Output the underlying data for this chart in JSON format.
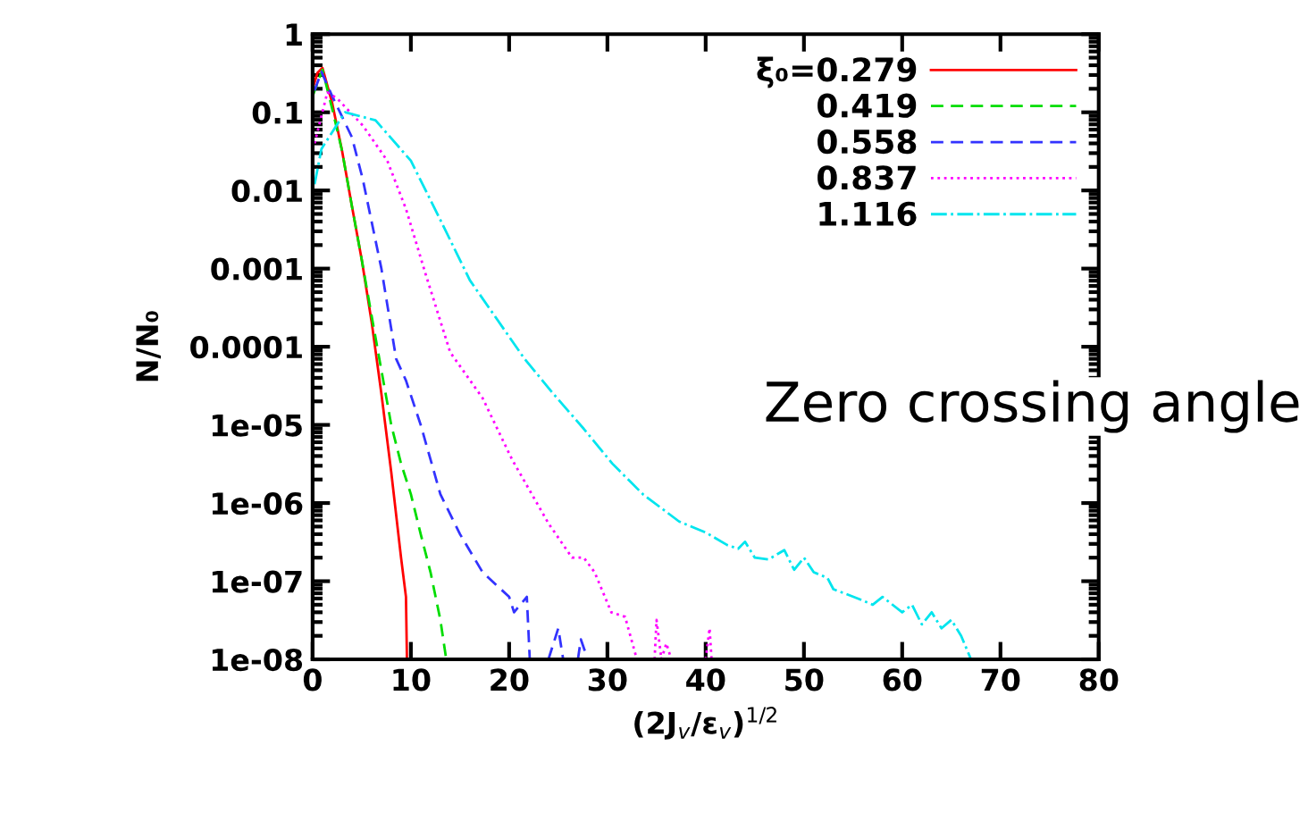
{
  "chart_data": {
    "type": "line",
    "xlabel": "(2J$_{v}$/ε$_{v}$)$^{1/2}$",
    "ylabel": "N/N₀",
    "xlim": [
      0,
      80
    ],
    "xticks": [
      0,
      10,
      20,
      30,
      40,
      50,
      60,
      70,
      80
    ],
    "ylim": [
      1e-08,
      1
    ],
    "yticks": [
      {
        "value": 1e-08,
        "label": "1e-08"
      },
      {
        "value": 1e-07,
        "label": "1e-07"
      },
      {
        "value": 1e-06,
        "label": "1e-06"
      },
      {
        "value": 1e-05,
        "label": "1e-05"
      },
      0.0001,
      0.001,
      0.01,
      0.1,
      1
    ],
    "log": "y",
    "grid": false,
    "legend": "top right",
    "annotations": [
      "Zero crossing angle"
    ],
    "series": [
      {
        "name": "ξ₀=0.279",
        "color": "#ff0000",
        "line_style": "solid",
        "x": [
          0,
          0.5,
          1,
          2,
          3,
          4,
          5,
          6,
          7,
          8,
          9,
          9.5,
          9.6
        ],
        "values": [
          0.2,
          0.32,
          0.37,
          0.13,
          0.032,
          0.0063,
          0.0013,
          0.00021,
          2.5e-05,
          2.5e-06,
          2e-07,
          6.3e-08,
          1e-08
        ]
      },
      {
        "name": "0.419",
        "color": "#00dd00",
        "line_style": "dashed",
        "x": [
          0,
          1,
          2,
          3,
          4,
          5,
          6,
          7,
          8,
          9,
          10,
          11,
          12,
          13,
          13.6
        ],
        "values": [
          0.16,
          0.35,
          0.11,
          0.032,
          0.0063,
          0.0013,
          0.00025,
          5e-05,
          1e-05,
          3.2e-06,
          1.3e-06,
          4e-07,
          1.3e-07,
          3.2e-08,
          1e-08
        ]
      },
      {
        "name": "0.558",
        "color": "#3333ff",
        "line_style": "dashed",
        "x": [
          0.2,
          0.9,
          2,
          4,
          5.1,
          7,
          8.5,
          9.5,
          11,
          13,
          15,
          17.3,
          20,
          20.5,
          21.8,
          22.1,
          23,
          24,
          25,
          25.5,
          26,
          27,
          27.3,
          28
        ],
        "values": [
          0.19,
          0.33,
          0.16,
          0.048,
          0.014,
          0.001,
          7e-05,
          3.7e-05,
          1e-05,
          1.3e-06,
          4e-07,
          1.3e-07,
          6.3e-08,
          4e-08,
          6.3e-08,
          1e-08,
          null,
          1e-08,
          2.5e-08,
          1e-08,
          null,
          1e-08,
          1.8e-08,
          1e-08
        ]
      },
      {
        "name": "0.837",
        "color": "#ff00ff",
        "line_style": "dotted",
        "x": [
          0.2,
          1.5,
          2.5,
          5.1,
          7.6,
          9.5,
          11.5,
          14,
          17.3,
          20.3,
          24,
          26.4,
          27.6,
          28.7,
          30.4,
          31.8,
          33,
          34,
          34.8,
          35,
          35.5,
          36,
          36.5,
          38,
          40,
          40.4,
          40.6
        ],
        "values": [
          0.04,
          0.18,
          0.15,
          0.068,
          0.024,
          0.0058,
          0.00085,
          8.5e-05,
          2.2e-05,
          3.6e-06,
          5.5e-07,
          2e-07,
          2e-07,
          1.3e-07,
          4e-08,
          3.5e-08,
          1e-08,
          null,
          1e-08,
          3.2e-08,
          1e-08,
          1.6e-08,
          1e-08,
          null,
          1e-08,
          2.5e-08,
          1e-08
        ]
      },
      {
        "name": "1.116",
        "color": "#00e5ee",
        "line_style": "dashdot",
        "x": [
          0.2,
          0.9,
          3.3,
          6.4,
          10,
          13,
          16,
          21.5,
          24.5,
          27.6,
          30.5,
          33.6,
          37.3,
          40,
          42.2,
          43.3,
          44,
          45,
          46.4,
          48,
          49,
          50,
          51,
          52.4,
          53,
          55.5,
          57,
          58,
          60,
          61,
          62,
          63,
          64,
          65,
          66,
          67
        ],
        "values": [
          0.012,
          0.034,
          0.1,
          0.079,
          0.024,
          0.0042,
          0.00071,
          7.2e-05,
          2.5e-05,
          8.9e-06,
          3.2e-06,
          1.3e-06,
          5.8e-07,
          4.2e-07,
          2.9e-07,
          2.6e-07,
          3.2e-07,
          2e-07,
          1.9e-07,
          2.5e-07,
          1.4e-07,
          2e-07,
          1.3e-07,
          1.1e-07,
          7.9e-08,
          6e-08,
          5e-08,
          6.3e-08,
          4e-08,
          5e-08,
          2.8e-08,
          4e-08,
          2.5e-08,
          3.2e-08,
          2e-08,
          1e-08
        ]
      }
    ]
  }
}
